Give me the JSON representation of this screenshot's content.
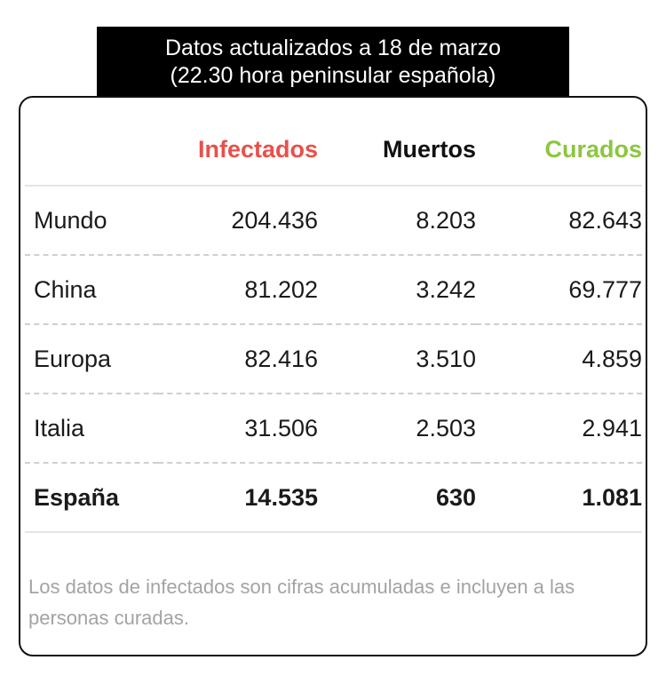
{
  "header": {
    "line1": "Datos actualizados a 18 de marzo",
    "line2": "(22.30 hora peninsular española)"
  },
  "colors": {
    "infectados": "#e8504a",
    "muertos": "#111111",
    "curados": "#8cc63f",
    "banner_bg": "#000000",
    "footnote": "#a3a3a3"
  },
  "chart_data": {
    "type": "table",
    "title": "",
    "columns": [
      "Infectados",
      "Muertos",
      "Curados"
    ],
    "rows": [
      {
        "name": "Mundo",
        "infectados": "204.436",
        "muertos": "8.203",
        "curados": "82.643"
      },
      {
        "name": "China",
        "infectados": "81.202",
        "muertos": "3.242",
        "curados": "69.777"
      },
      {
        "name": "Europa",
        "infectados": "82.416",
        "muertos": "3.510",
        "curados": "4.859"
      },
      {
        "name": "Italia",
        "infectados": "31.506",
        "muertos": "2.503",
        "curados": "2.941"
      },
      {
        "name": "España",
        "infectados": "14.535",
        "muertos": "630",
        "curados": "1.081"
      }
    ],
    "highlighted_row": "España"
  },
  "footnote": "Los datos de infectados son cifras acumuladas e incluyen a las personas curadas."
}
